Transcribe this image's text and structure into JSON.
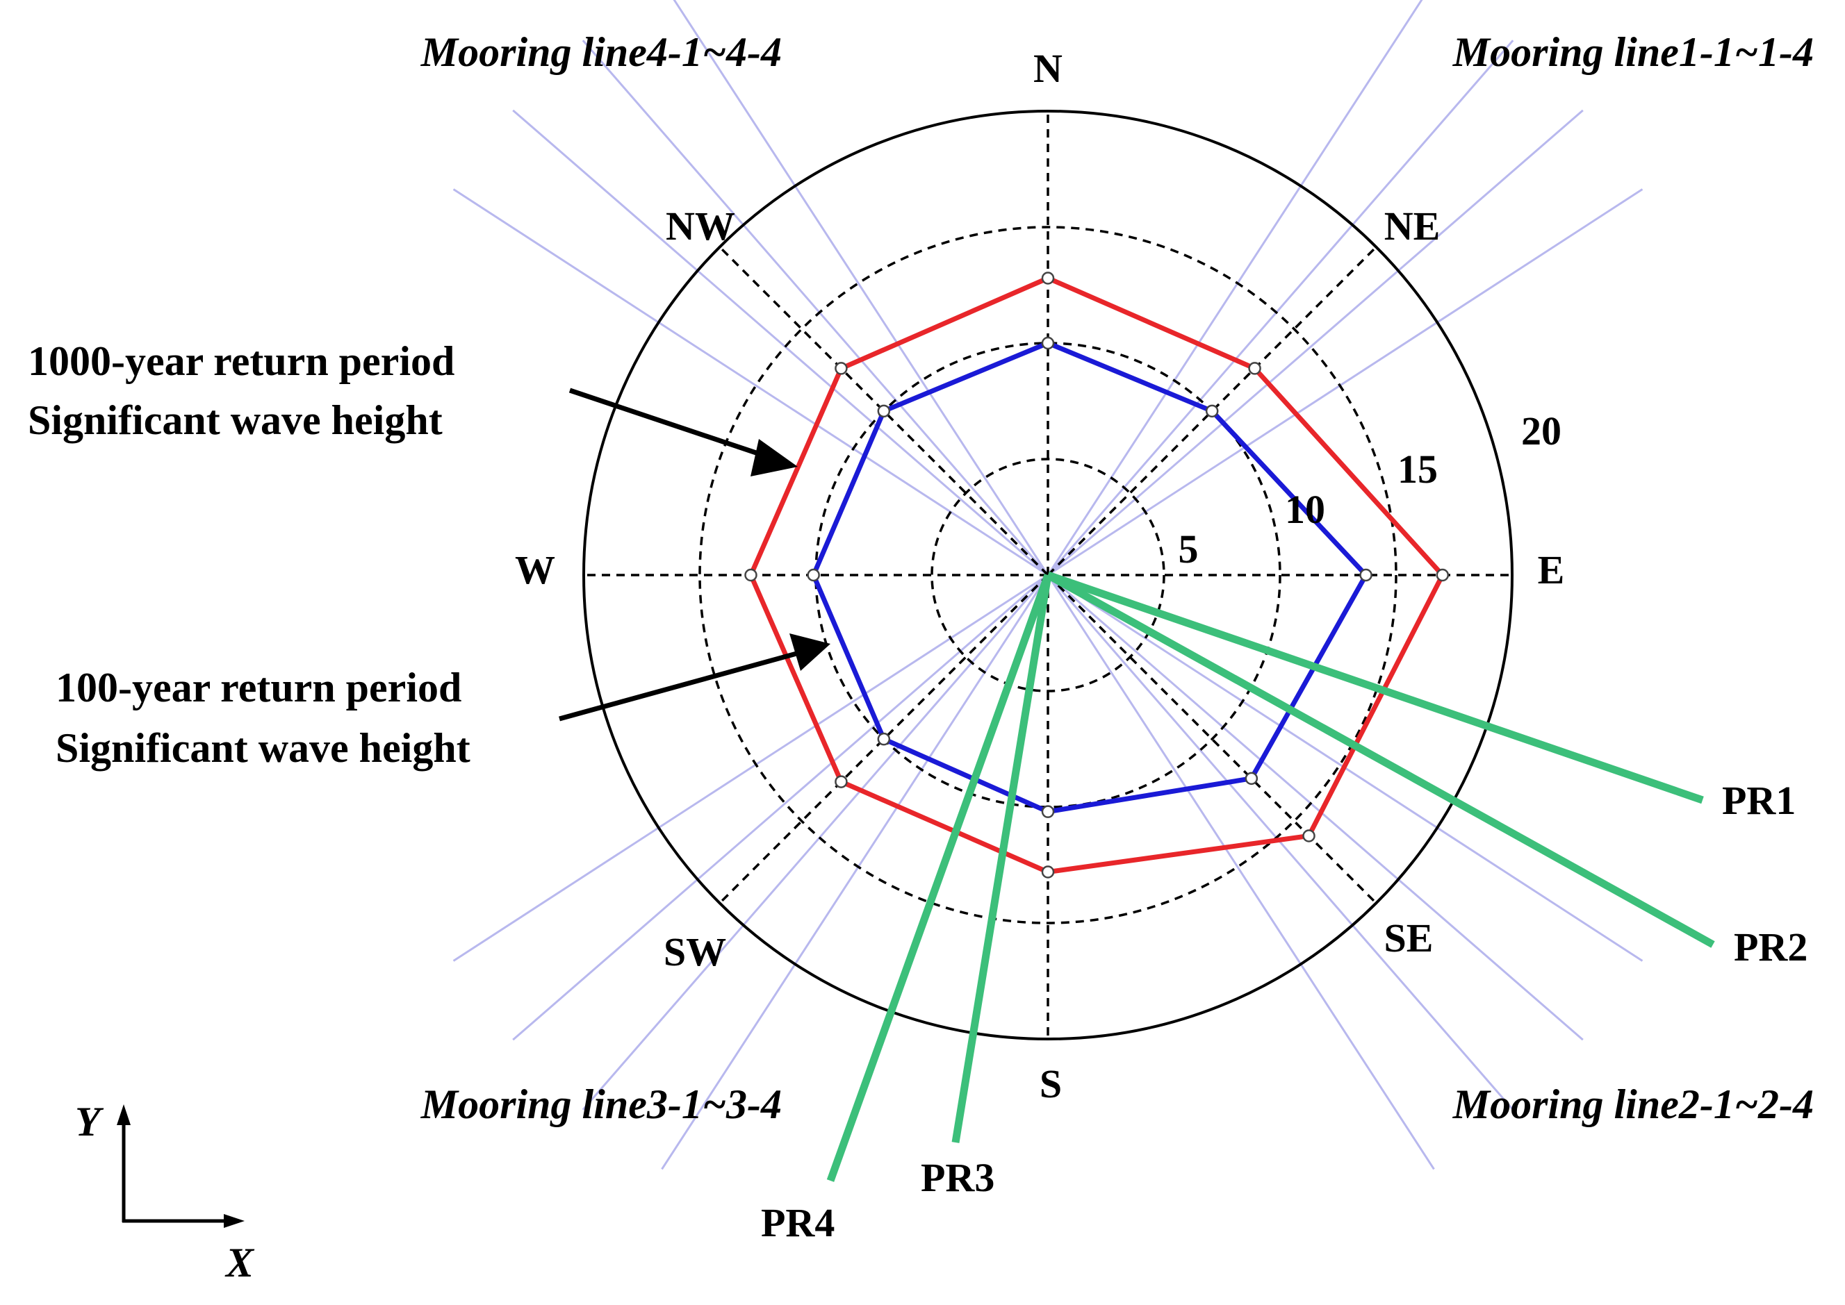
{
  "compass": {
    "N": "N",
    "NE": "NE",
    "E": "E",
    "SE": "SE",
    "S": "S",
    "SW": "SW",
    "W": "W",
    "NW": "NW"
  },
  "radial_ticks": [
    {
      "label": "5",
      "value": 5
    },
    {
      "label": "10",
      "value": 10
    },
    {
      "label": "15",
      "value": 15
    },
    {
      "label": "20",
      "value": 20
    }
  ],
  "mooring_labels": {
    "line1": "Mooring line1-1~1-4",
    "line2": "Mooring line2-1~2-4",
    "line3": "Mooring line3-1~3-4",
    "line4": "Mooring line4-1~4-4"
  },
  "annotations": {
    "return_1000_line1": "1000-year return period",
    "return_1000_line2": "Significant wave height",
    "return_100_line1": "100-year return period",
    "return_100_line2": "Significant wave height"
  },
  "risers": [
    {
      "label": "PR1"
    },
    {
      "label": "PR2"
    },
    {
      "label": "PR3"
    },
    {
      "label": "PR4"
    }
  ],
  "axes": {
    "y": "Y",
    "x": "X"
  },
  "colors": {
    "return_1000": "#e8262a",
    "return_100": "#1a1ad6",
    "mooring": "#b8b8ee",
    "riser": "#3cbf7a",
    "grid": "#000000"
  },
  "chart_data": {
    "type": "radar",
    "directions": [
      "N",
      "NE",
      "E",
      "SE",
      "S",
      "SW",
      "W",
      "NW"
    ],
    "rmax": 20,
    "series": [
      {
        "name": "1000-year return period Significant wave height",
        "values": [
          12.8,
          12.6,
          17.0,
          15.9,
          12.8,
          12.6,
          12.8,
          12.6
        ]
      },
      {
        "name": "100-year return period Significant wave height",
        "values": [
          10.0,
          10.0,
          13.7,
          12.4,
          10.2,
          10.0,
          10.1,
          10.0
        ]
      }
    ]
  }
}
